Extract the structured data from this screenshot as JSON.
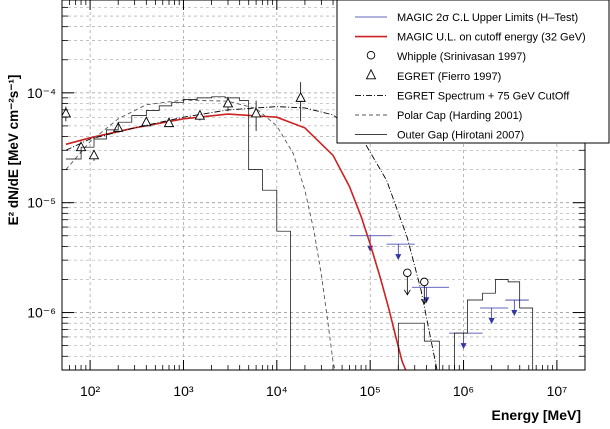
{
  "chart_data": {
    "type": "line",
    "title": "",
    "xlabel": "Energy [MeV]",
    "ylabel": "E² dN/dE [MeV cm⁻²s⁻¹]",
    "xscale": "log",
    "yscale": "log",
    "xlim": [
      50,
      20000000
    ],
    "ylim": [
      3e-07,
      0.0007
    ],
    "grid": true,
    "legend_placement": "top-right",
    "x_ticks": [
      {
        "value": 100,
        "label": "10²"
      },
      {
        "value": 1000,
        "label": "10³"
      },
      {
        "value": 10000,
        "label": "10⁴"
      },
      {
        "value": 100000,
        "label": "10⁵"
      },
      {
        "value": 1000000,
        "label": "10⁶"
      },
      {
        "value": 10000000,
        "label": "10⁷"
      }
    ],
    "y_ticks": [
      {
        "value": 1e-06,
        "label": "10⁻⁶"
      },
      {
        "value": 1e-05,
        "label": "10⁻⁵"
      },
      {
        "value": 0.0001,
        "label": "10⁻⁴"
      }
    ],
    "legend": [
      {
        "label": "MAGIC 2σ  C.L Upper Limits (H–Test)",
        "style": "line",
        "color": "#3333aa",
        "dash": "",
        "width": 0.8
      },
      {
        "label": "MAGIC U.L. on cutoff energy (32 GeV)",
        "style": "line",
        "color": "#cc2222",
        "dash": "",
        "width": 1.6
      },
      {
        "label": "Whipple (Srinivasan 1997)",
        "style": "circle",
        "color": "#000000"
      },
      {
        "label": "EGRET (Fierro 1997)",
        "style": "triangle",
        "color": "#000000"
      },
      {
        "label": "EGRET Spectrum + 75 GeV CutOff",
        "style": "line",
        "color": "#000000",
        "dash": "6,2,1,2",
        "width": 0.9
      },
      {
        "label": "Polar Cap (Harding 2001)",
        "style": "line",
        "color": "#555555",
        "dash": "4,3",
        "width": 0.9
      },
      {
        "label": "Outer Gap (Hirotani 2007)",
        "style": "line",
        "color": "#000000",
        "dash": "",
        "width": 0.7
      }
    ],
    "series": [
      {
        "name": "MAGIC 2σ  C.L Upper Limits (H–Test)",
        "kind": "upper_limits",
        "color": "#3333aa",
        "points": [
          {
            "x": 100000,
            "y": 5e-06,
            "xerr": [
              60000,
              170000
            ]
          },
          {
            "x": 200000,
            "y": 4.2e-06,
            "xerr": [
              150000,
              300000
            ]
          },
          {
            "x": 400000,
            "y": 1.7e-06,
            "xerr": [
              280000,
              700000
            ]
          },
          {
            "x": 1000000,
            "y": 6.5e-07,
            "xerr": [
              700000,
              1600000
            ]
          },
          {
            "x": 2000000,
            "y": 1.1e-06,
            "xerr": [
              1500000,
              3000000
            ]
          },
          {
            "x": 3500000,
            "y": 1.3e-06,
            "xerr": [
              2800000,
              5000000
            ]
          }
        ]
      },
      {
        "name": "MAGIC U.L. on cutoff energy (32 GeV)",
        "kind": "line",
        "color": "#cc2222",
        "points": [
          [
            55,
            3.4e-05
          ],
          [
            100,
            3.9e-05
          ],
          [
            300,
            4.8e-05
          ],
          [
            1000,
            5.8e-05
          ],
          [
            3000,
            6.4e-05
          ],
          [
            10000,
            6e-05
          ],
          [
            20000,
            4.8e-05
          ],
          [
            40000,
            2.7e-05
          ],
          [
            60000,
            1.4e-05
          ],
          [
            80000,
            7.5e-06
          ],
          [
            100000,
            4.2e-06
          ],
          [
            130000,
            2e-06
          ],
          [
            160000,
            1.05e-06
          ],
          [
            190000,
            5.8e-07
          ],
          [
            220000,
            3.6e-07
          ],
          [
            240000,
            3e-07
          ]
        ]
      },
      {
        "name": "Whipple (Srinivasan 1997)",
        "kind": "upper_limits_circle",
        "color": "#000000",
        "points": [
          {
            "x": 250000,
            "y": 2.3e-06
          },
          {
            "x": 380000,
            "y": 1.9e-06
          }
        ]
      },
      {
        "name": "EGRET (Fierro 1997)",
        "kind": "triangles",
        "color": "#000000",
        "points": [
          {
            "x": 55,
            "y": 6.5e-05,
            "yerr": [
              5.5e-05,
              7.5e-05
            ]
          },
          {
            "x": 80,
            "y": 3.2e-05,
            "yerr": [
              2.8e-05,
              3.6e-05
            ]
          },
          {
            "x": 110,
            "y": 2.7e-05,
            "yerr": [
              2.4e-05,
              3e-05
            ]
          },
          {
            "x": 200,
            "y": 4.8e-05,
            "yerr": [
              4.4e-05,
              5.2e-05
            ]
          },
          {
            "x": 400,
            "y": 5.4e-05,
            "yerr": [
              5e-05,
              5.8e-05
            ]
          },
          {
            "x": 700,
            "y": 5.3e-05,
            "yerr": [
              4.9e-05,
              5.7e-05
            ]
          },
          {
            "x": 1500,
            "y": 6.2e-05,
            "yerr": [
              5.6e-05,
              6.8e-05
            ]
          },
          {
            "x": 3000,
            "y": 8e-05,
            "yerr": [
              6.8e-05,
              9.2e-05
            ]
          },
          {
            "x": 6000,
            "y": 6.5e-05,
            "yerr": [
              4.5e-05,
              8.5e-05
            ]
          },
          {
            "x": 18000,
            "y": 9e-05,
            "yerr": [
              5.5e-05,
              0.000125
            ]
          }
        ]
      },
      {
        "name": "EGRET Spectrum + 75 GeV CutOff",
        "kind": "line",
        "color": "#000000",
        "dash": "6,2,1,2",
        "points": [
          [
            55,
            3e-05
          ],
          [
            100,
            3.8e-05
          ],
          [
            300,
            4.8e-05
          ],
          [
            1000,
            6e-05
          ],
          [
            3000,
            7e-05
          ],
          [
            10000,
            7.5e-05
          ],
          [
            20000,
            7.3e-05
          ],
          [
            40000,
            6.3e-05
          ],
          [
            80000,
            4e-05
          ],
          [
            150000,
            1.6e-05
          ],
          [
            250000,
            4.8e-06
          ],
          [
            350000,
            1.6e-06
          ],
          [
            450000,
            5.5e-07
          ],
          [
            520000,
            3e-07
          ]
        ]
      },
      {
        "name": "Polar Cap (Harding 2001)",
        "kind": "line",
        "color": "#555555",
        "dash": "4,3",
        "points": [
          [
            55,
            2e-05
          ],
          [
            100,
            3.6e-05
          ],
          [
            200,
            5.8e-05
          ],
          [
            400,
            7.8e-05
          ],
          [
            1000,
            8.6e-05
          ],
          [
            3000,
            8.4e-05
          ],
          [
            6000,
            7.2e-05
          ],
          [
            10000,
            5e-05
          ],
          [
            15000,
            2.8e-05
          ],
          [
            20000,
            1.3e-05
          ],
          [
            25000,
            5.5e-06
          ],
          [
            30000,
            2.2e-06
          ],
          [
            35000,
            8.5e-07
          ],
          [
            40000,
            3.6e-07
          ],
          [
            42000,
            3e-07
          ]
        ]
      },
      {
        "name": "Outer Gap (Hirotani 2007)",
        "kind": "step",
        "color": "#000000",
        "points": [
          [
            55,
            2.5e-05
          ],
          [
            80,
            3.2e-05
          ],
          [
            110,
            3.8e-05
          ],
          [
            150,
            4.6e-05
          ],
          [
            200,
            5.4e-05
          ],
          [
            280,
            6.2e-05
          ],
          [
            400,
            6.9e-05
          ],
          [
            550,
            7.6e-05
          ],
          [
            750,
            8.2e-05
          ],
          [
            1000,
            8.7e-05
          ],
          [
            1400,
            9e-05
          ],
          [
            2000,
            9.2e-05
          ],
          [
            2800,
            9e-05
          ],
          [
            4000,
            8.5e-05
          ],
          [
            5000,
            2e-05
          ],
          [
            7000,
            1.3e-05
          ],
          [
            10000,
            5.5e-06
          ],
          [
            14000,
            3e-07
          ],
          [
            35000,
            3e-07
          ],
          [
            140000,
            3e-07
          ],
          [
            200000,
            8e-07
          ],
          [
            280000,
            8e-07
          ],
          [
            380000,
            5.5e-07
          ],
          [
            550000,
            3e-07
          ],
          [
            800000,
            6.5e-07
          ],
          [
            1100000,
            1.3e-06
          ],
          [
            1600000,
            1.5e-06
          ],
          [
            2200000,
            2e-06
          ],
          [
            3000000,
            1.9e-06
          ],
          [
            4000000,
            1.1e-06
          ],
          [
            5500000,
            3e-07
          ]
        ]
      }
    ]
  }
}
